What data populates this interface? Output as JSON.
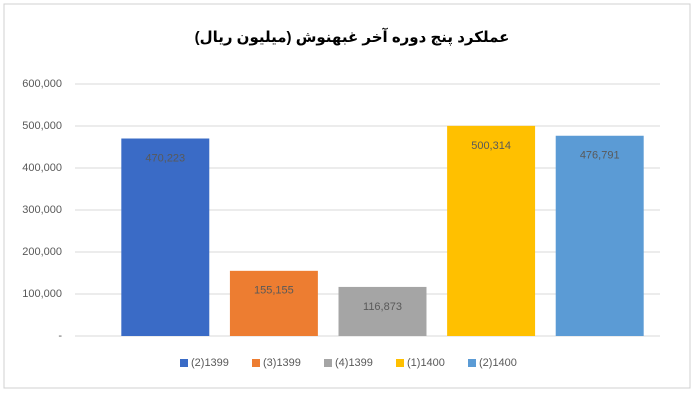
{
  "chart_data": {
    "type": "bar",
    "title": "عملکرد پنج دوره آخر غبهنوش (میلیون ریال)",
    "categories": [
      "(2)1399",
      "(3)1399",
      "(4)1399",
      "(1)1400",
      "(2)1400"
    ],
    "values": [
      470223,
      155155,
      116873,
      500314,
      476791
    ],
    "value_labels": [
      "470,223",
      "155,155",
      "116,873",
      "500,314",
      "476,791"
    ],
    "colors": [
      "#3a6bc6",
      "#ed7d31",
      "#a5a5a5",
      "#ffc000",
      "#5b9bd5"
    ],
    "ylim": [
      0,
      600000
    ],
    "yticks": [
      {
        "value": 0,
        "label": "-"
      },
      {
        "value": 100000,
        "label": "100,000"
      },
      {
        "value": 200000,
        "label": "200,000"
      },
      {
        "value": 300000,
        "label": "300,000"
      },
      {
        "value": 400000,
        "label": "400,000"
      },
      {
        "value": 500000,
        "label": "500,000"
      },
      {
        "value": 600000,
        "label": "600,000"
      }
    ],
    "grid": true,
    "legend": "bottom"
  }
}
